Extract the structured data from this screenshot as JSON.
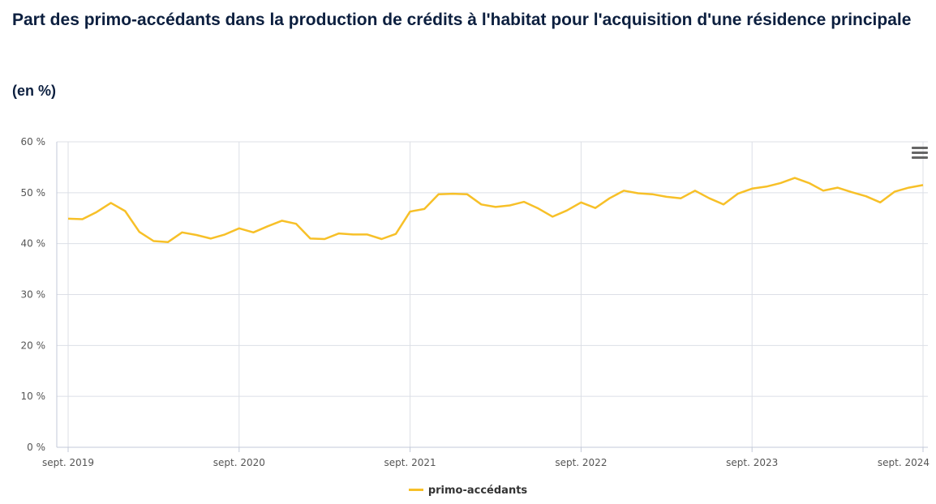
{
  "chart_data": {
    "type": "line",
    "title": "Part des primo-accédants dans la production de crédits à l'habitat pour l'acquisition d'une résidence principale",
    "subtitle": "(en %)",
    "xlabel": "",
    "ylabel": "",
    "ylim": [
      0,
      60
    ],
    "y_ticks": [
      "0 %",
      "10 %",
      "20 %",
      "30 %",
      "40 %",
      "50 %",
      "60 %"
    ],
    "y_tick_values": [
      0,
      10,
      20,
      30,
      40,
      50,
      60
    ],
    "x_ticks": [
      "sept. 2019",
      "sept. 2020",
      "sept. 2021",
      "sept. 2022",
      "sept. 2023",
      "sept. 2024"
    ],
    "x_start": "sept. 2019",
    "x_end": "sept. 2024",
    "grid": true,
    "legend_position": "bottom-center",
    "colors": {
      "series": "#f7c028",
      "grid": "#dcdfe6",
      "axis": "#c3cad9"
    },
    "series": [
      {
        "name": "primo-accédants",
        "values": [
          44.9,
          44.8,
          46.2,
          48.0,
          46.4,
          42.3,
          40.5,
          40.3,
          42.2,
          41.7,
          41.0,
          41.8,
          43.0,
          42.2,
          43.4,
          44.5,
          43.9,
          41.0,
          40.9,
          42.0,
          41.8,
          41.8,
          40.9,
          41.9,
          46.3,
          46.8,
          49.7,
          49.8,
          49.7,
          47.7,
          47.2,
          47.5,
          48.2,
          46.9,
          45.3,
          46.5,
          48.1,
          47.0,
          48.9,
          50.4,
          49.9,
          49.7,
          49.2,
          48.9,
          50.4,
          48.9,
          47.7,
          49.8,
          50.8,
          51.2,
          51.9,
          52.9,
          51.9,
          50.4,
          51.0,
          50.1,
          49.3,
          48.1,
          50.2,
          51.0,
          51.5
        ]
      }
    ]
  },
  "toolbar": {
    "menu_icon": "hamburger-menu-icon"
  }
}
